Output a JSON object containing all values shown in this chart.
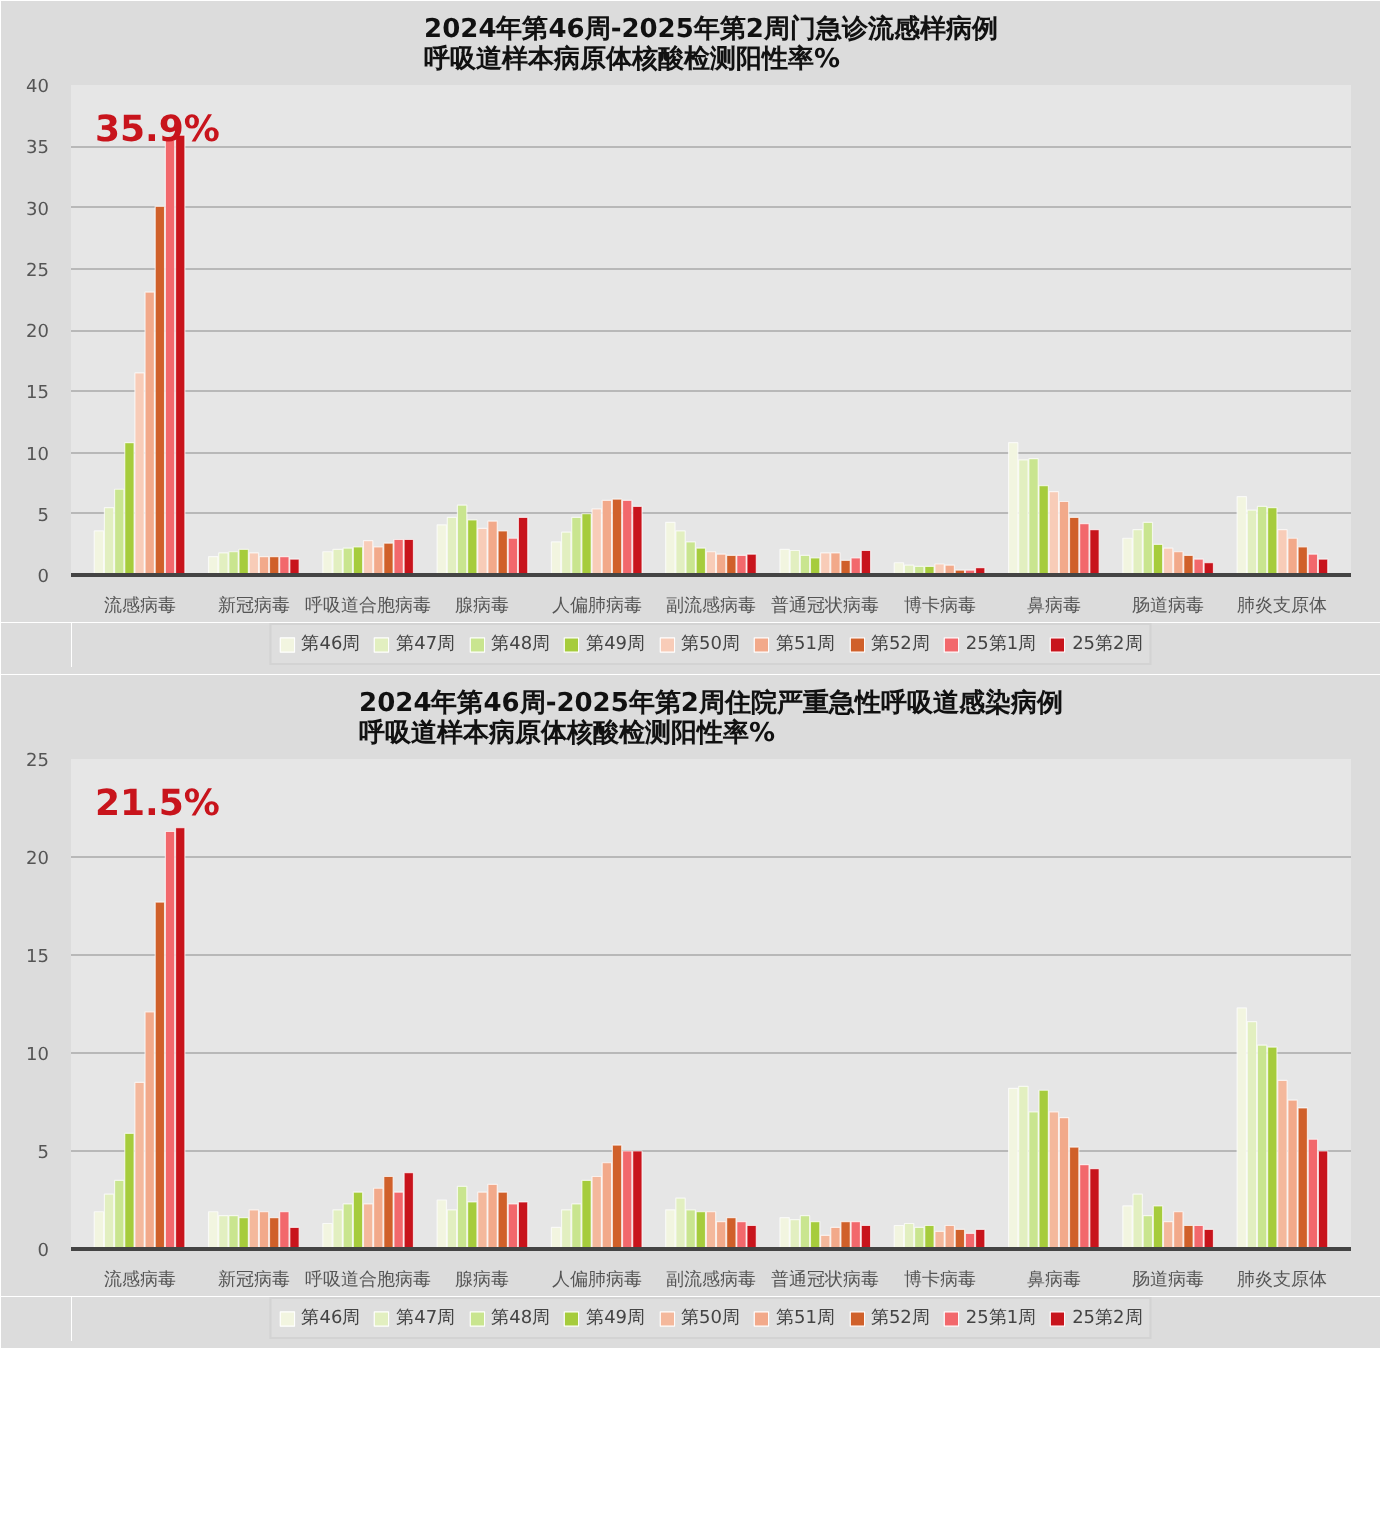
{
  "chart_data": [
    {
      "type": "bar",
      "title": "2024年第46周-2025年第2周门急诊流感样病例",
      "subtitle": "呼吸道样本病原体核酸检测阳性率%",
      "categories": [
        "流感病毒",
        "新冠病毒",
        "呼吸道合胞病毒",
        "腺病毒",
        "人偏肺病毒",
        "副流感病毒",
        "普通冠状病毒",
        "博卡病毒",
        "鼻病毒",
        "肠道病毒",
        "肺炎支原体"
      ],
      "series": [
        {
          "name": "第46周",
          "color": "#f2f5e0",
          "values": [
            3.6,
            1.5,
            1.9,
            4.1,
            2.7,
            4.3,
            2.1,
            1.0,
            10.8,
            3.0,
            6.4
          ]
        },
        {
          "name": "第47周",
          "color": "#e2efc0",
          "values": [
            5.5,
            1.8,
            2.1,
            4.7,
            3.5,
            3.6,
            2.0,
            0.8,
            9.4,
            3.7,
            5.3
          ]
        },
        {
          "name": "第48周",
          "color": "#c9e58f",
          "values": [
            7.0,
            1.9,
            2.2,
            5.7,
            4.7,
            2.7,
            1.6,
            0.7,
            9.5,
            4.3,
            5.6
          ]
        },
        {
          "name": "第49周",
          "color": "#a6cc3c",
          "values": [
            10.8,
            2.1,
            2.3,
            4.5,
            5.0,
            2.2,
            1.4,
            0.7,
            7.3,
            2.5,
            5.5
          ]
        },
        {
          "name": "第50周",
          "color": "#f8ccb8",
          "values": [
            16.5,
            1.8,
            2.8,
            3.8,
            5.4,
            1.9,
            1.8,
            0.9,
            6.8,
            2.2,
            3.7
          ]
        },
        {
          "name": "第51周",
          "color": "#f2a98a",
          "values": [
            23.1,
            1.5,
            2.3,
            4.4,
            6.1,
            1.7,
            1.8,
            0.8,
            6.0,
            1.9,
            3.0
          ]
        },
        {
          "name": "第52周",
          "color": "#d0602a",
          "values": [
            30.1,
            1.5,
            2.6,
            3.6,
            6.2,
            1.6,
            1.2,
            0.4,
            4.7,
            1.6,
            2.3
          ]
        },
        {
          "name": "25第1周",
          "color": "#f2686c",
          "values": [
            35.5,
            1.5,
            2.9,
            3.0,
            6.1,
            1.6,
            1.4,
            0.4,
            4.2,
            1.3,
            1.7
          ]
        },
        {
          "name": "25第2周",
          "color": "#c8141c",
          "values": [
            35.9,
            1.3,
            2.9,
            4.7,
            5.6,
            1.7,
            2.0,
            0.6,
            3.7,
            1.0,
            1.3
          ]
        }
      ],
      "ylim": [
        0,
        40
      ],
      "yticks": [
        0,
        5,
        10,
        15,
        20,
        25,
        30,
        35,
        40
      ],
      "grid": "y",
      "legend": "bottom",
      "annotations": [
        "35.9%"
      ]
    },
    {
      "type": "bar",
      "title": "2024年第46周-2025年第2周住院严重急性呼吸道感染病例",
      "subtitle": "呼吸道样本病原体核酸检测阳性率%",
      "categories": [
        "流感病毒",
        "新冠病毒",
        "呼吸道合胞病毒",
        "腺病毒",
        "人偏肺病毒",
        "副流感病毒",
        "普通冠状病毒",
        "博卡病毒",
        "鼻病毒",
        "肠道病毒",
        "肺炎支原体"
      ],
      "series": [
        {
          "name": "第46周",
          "color": "#f2f5e0",
          "values": [
            1.9,
            1.9,
            1.3,
            2.5,
            1.1,
            2.0,
            1.6,
            1.2,
            8.2,
            2.2,
            12.3
          ]
        },
        {
          "name": "第47周",
          "color": "#e2efc0",
          "values": [
            2.8,
            1.7,
            2.0,
            2.0,
            2.0,
            2.6,
            1.5,
            1.3,
            8.3,
            2.8,
            11.6
          ]
        },
        {
          "name": "第48周",
          "color": "#c9e58f",
          "values": [
            3.5,
            1.7,
            2.3,
            3.2,
            2.3,
            2.0,
            1.7,
            1.1,
            7.0,
            1.7,
            10.4
          ]
        },
        {
          "name": "第49周",
          "color": "#a6cc3c",
          "values": [
            5.9,
            1.6,
            2.9,
            2.4,
            3.5,
            1.9,
            1.4,
            1.2,
            8.1,
            2.2,
            10.3
          ]
        },
        {
          "name": "第50周",
          "color": "#f4b89c",
          "values": [
            8.5,
            2.0,
            2.3,
            2.9,
            3.7,
            1.9,
            0.7,
            0.9,
            7.0,
            1.4,
            8.6
          ]
        },
        {
          "name": "第51周",
          "color": "#f2a98a",
          "values": [
            12.1,
            1.9,
            3.1,
            3.3,
            4.4,
            1.4,
            1.1,
            1.2,
            6.7,
            1.9,
            7.6
          ]
        },
        {
          "name": "第52周",
          "color": "#d0602a",
          "values": [
            17.7,
            1.6,
            3.7,
            2.9,
            5.3,
            1.6,
            1.4,
            1.0,
            5.2,
            1.2,
            7.2
          ]
        },
        {
          "name": "25第1周",
          "color": "#f2686c",
          "values": [
            21.3,
            1.9,
            2.9,
            2.3,
            5.0,
            1.4,
            1.4,
            0.8,
            4.3,
            1.2,
            5.6
          ]
        },
        {
          "name": "25第2周",
          "color": "#c8141c",
          "values": [
            21.5,
            1.1,
            3.9,
            2.4,
            5.0,
            1.2,
            1.2,
            1.0,
            4.1,
            1.0,
            5.0
          ]
        }
      ],
      "ylim": [
        0,
        25
      ],
      "yticks": [
        0,
        5,
        10,
        15,
        20,
        25
      ],
      "grid": "y",
      "legend": "bottom",
      "annotations": [
        "21.5%"
      ]
    }
  ]
}
